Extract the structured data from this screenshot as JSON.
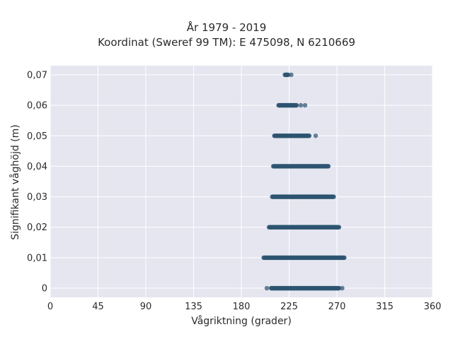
{
  "chart_data": {
    "type": "scatter",
    "title": "År 1979 - 2019",
    "subtitle": "Koordinat (Sweref 99 TM): E 475098, N 6210669",
    "xlabel": "Vågriktning (grader)",
    "ylabel": "Signifikant våghöjd (m)",
    "xlim": [
      0,
      360
    ],
    "ylim": [
      -0.003,
      0.073
    ],
    "x_ticks": [
      0,
      45,
      90,
      135,
      180,
      225,
      270,
      315,
      360
    ],
    "x_tick_labels": [
      "0",
      "45",
      "90",
      "135",
      "180",
      "225",
      "270",
      "315",
      "360"
    ],
    "y_ticks": [
      0,
      0.01,
      0.02,
      0.03,
      0.04,
      0.05,
      0.06,
      0.07
    ],
    "y_tick_labels": [
      "0",
      "0,01",
      "0,02",
      "0,03",
      "0,04",
      "0,05",
      "0,06",
      "0,07"
    ],
    "grid": true,
    "colors": {
      "background": "#e5e6f0",
      "grid": "#ffffff",
      "marker": "#2e5470",
      "text": "#2a2a2a"
    },
    "series": [
      {
        "points_by_height": [
          {
            "y": 0.0,
            "x_ranges": [
              [
                204,
                204
              ],
              [
                208,
                272
              ],
              [
                275,
                275
              ]
            ]
          },
          {
            "y": 0.01,
            "x_ranges": [
              [
                201,
                277
              ]
            ]
          },
          {
            "y": 0.02,
            "x_ranges": [
              [
                206,
                272
              ]
            ]
          },
          {
            "y": 0.03,
            "x_ranges": [
              [
                209,
                267
              ]
            ]
          },
          {
            "y": 0.04,
            "x_ranges": [
              [
                210,
                262
              ]
            ]
          },
          {
            "y": 0.05,
            "x_ranges": [
              [
                211,
                244
              ],
              [
                250,
                250
              ]
            ]
          },
          {
            "y": 0.06,
            "x_ranges": [
              [
                215,
                232
              ],
              [
                236,
                236
              ],
              [
                240,
                240
              ]
            ]
          },
          {
            "y": 0.07,
            "x_ranges": [
              [
                221,
                224
              ],
              [
                227,
                227
              ]
            ]
          }
        ]
      }
    ]
  }
}
